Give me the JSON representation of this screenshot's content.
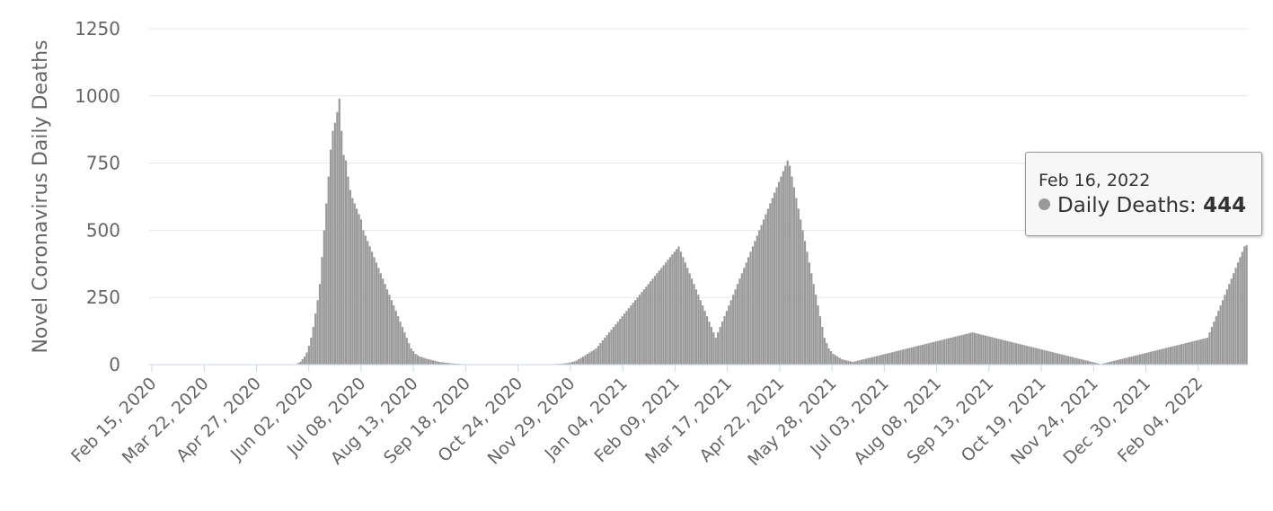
{
  "chart_data": {
    "type": "bar",
    "ylabel": "Novel Coronavirus Daily Deaths",
    "ylim": [
      0,
      1250
    ],
    "yticks": [
      0,
      250,
      500,
      750,
      1000,
      1250
    ],
    "x_start": "Feb 15, 2020",
    "x_end": "Feb 16, 2022",
    "xtick_labels": [
      "Feb 15, 2020",
      "Mar 22, 2020",
      "Apr 27, 2020",
      "Jun 02, 2020",
      "Jul 08, 2020",
      "Aug 13, 2020",
      "Sep 18, 2020",
      "Oct 24, 2020",
      "Nov 29, 2020",
      "Jan 04, 2021",
      "Feb 09, 2021",
      "Mar 17, 2021",
      "Apr 22, 2021",
      "May 28, 2021",
      "Jul 03, 2021",
      "Aug 08, 2021",
      "Sep 13, 2021",
      "Oct 19, 2021",
      "Nov 24, 2021",
      "Dec 30, 2021",
      "Feb 04, 2022"
    ],
    "series": [
      {
        "values": [
          0,
          0,
          0,
          0,
          0,
          0,
          0,
          0,
          0,
          0,
          0,
          0,
          0,
          0,
          0,
          0,
          0,
          0,
          0,
          0,
          0,
          0,
          0,
          0,
          0,
          0,
          0,
          0,
          0,
          0,
          0,
          0,
          0,
          0,
          0,
          0,
          0,
          0,
          0,
          0,
          0,
          0,
          0,
          0,
          0,
          0,
          0,
          0,
          0,
          0,
          0,
          0,
          0,
          0,
          0,
          0,
          0,
          0,
          0,
          0,
          0,
          0,
          0,
          0,
          0,
          0,
          0,
          0,
          5,
          10,
          20,
          30,
          45,
          70,
          100,
          140,
          190,
          240,
          300,
          400,
          500,
          600,
          700,
          800,
          870,
          900,
          940,
          990,
          870,
          780,
          760,
          700,
          650,
          620,
          600,
          580,
          560,
          540,
          500,
          480,
          460,
          440,
          420,
          400,
          380,
          360,
          340,
          320,
          300,
          280,
          260,
          240,
          220,
          200,
          180,
          160,
          140,
          120,
          100,
          80,
          60,
          50,
          40,
          35,
          30,
          28,
          25,
          22,
          20,
          18,
          16,
          14,
          12,
          10,
          9,
          8,
          7,
          6,
          5,
          4,
          4,
          3,
          3,
          2,
          2,
          2,
          2,
          1,
          1,
          1,
          1,
          1,
          1,
          1,
          1,
          1,
          1,
          1,
          1,
          1,
          1,
          1,
          1,
          1,
          1,
          1,
          1,
          1,
          1,
          1,
          1,
          1,
          1,
          1,
          1,
          1,
          1,
          1,
          1,
          1,
          1,
          1,
          1,
          1,
          1,
          2,
          2,
          2,
          3,
          3,
          4,
          5,
          6,
          8,
          10,
          12,
          15,
          20,
          25,
          30,
          35,
          40,
          45,
          50,
          55,
          60,
          70,
          80,
          90,
          100,
          110,
          120,
          130,
          140,
          150,
          160,
          170,
          180,
          190,
          200,
          210,
          220,
          230,
          240,
          250,
          260,
          270,
          280,
          290,
          300,
          310,
          320,
          330,
          340,
          350,
          360,
          370,
          380,
          390,
          400,
          410,
          420,
          430,
          440,
          420,
          400,
          380,
          360,
          340,
          320,
          300,
          280,
          260,
          240,
          220,
          200,
          180,
          160,
          140,
          120,
          100,
          120,
          140,
          160,
          180,
          200,
          220,
          240,
          260,
          280,
          300,
          320,
          340,
          360,
          380,
          400,
          420,
          440,
          460,
          480,
          500,
          520,
          540,
          560,
          580,
          600,
          620,
          640,
          660,
          680,
          700,
          720,
          740,
          760,
          740,
          700,
          660,
          620,
          580,
          540,
          500,
          460,
          420,
          380,
          340,
          300,
          260,
          220,
          180,
          140,
          100,
          80,
          60,
          50,
          40,
          35,
          30,
          25,
          20,
          18,
          16,
          14,
          12,
          10,
          12,
          14,
          16,
          18,
          20,
          22,
          24,
          26,
          28,
          30,
          32,
          34,
          36,
          38,
          40,
          42,
          44,
          46,
          48,
          50,
          52,
          54,
          56,
          58,
          60,
          62,
          64,
          66,
          68,
          70,
          72,
          74,
          76,
          78,
          80,
          82,
          84,
          86,
          88,
          90,
          92,
          94,
          96,
          98,
          100,
          102,
          104,
          106,
          108,
          110,
          112,
          114,
          116,
          118,
          120,
          118,
          116,
          114,
          112,
          110,
          108,
          106,
          104,
          102,
          100,
          98,
          96,
          94,
          92,
          90,
          88,
          86,
          84,
          82,
          80,
          78,
          76,
          74,
          72,
          70,
          68,
          66,
          64,
          62,
          60,
          58,
          56,
          54,
          52,
          50,
          48,
          46,
          44,
          42,
          40,
          38,
          36,
          34,
          32,
          30,
          28,
          26,
          24,
          22,
          20,
          18,
          16,
          14,
          12,
          10,
          8,
          6,
          4,
          2,
          4,
          6,
          8,
          10,
          12,
          14,
          16,
          18,
          20,
          22,
          24,
          26,
          28,
          30,
          32,
          34,
          36,
          38,
          40,
          42,
          44,
          46,
          48,
          50,
          52,
          54,
          56,
          58,
          60,
          62,
          64,
          66,
          68,
          70,
          72,
          74,
          76,
          78,
          80,
          82,
          84,
          86,
          88,
          90,
          92,
          94,
          96,
          98,
          100,
          120,
          140,
          160,
          180,
          200,
          220,
          240,
          260,
          280,
          300,
          320,
          340,
          360,
          380,
          400,
          420,
          440,
          444
        ]
      }
    ]
  },
  "tooltip": {
    "date": "Feb 16, 2022",
    "series_label": "Daily Deaths:",
    "value": "444"
  }
}
